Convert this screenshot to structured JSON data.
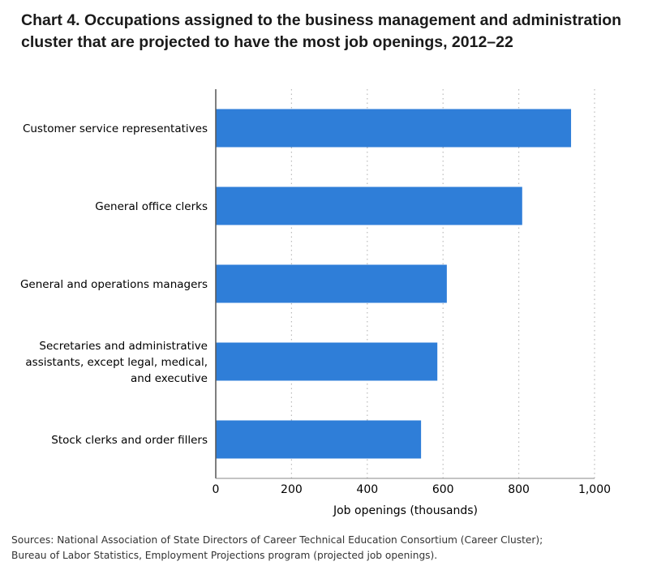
{
  "chart_data": {
    "type": "bar",
    "orientation": "horizontal",
    "title_lines": [
      "Chart 4. Occupations assigned to the business management and administration",
      "cluster that are projected to have the most job openings, 2012–22"
    ],
    "categories": [
      [
        "Customer service representatives"
      ],
      [
        "General office clerks"
      ],
      [
        "General and operations managers"
      ],
      [
        "Secretaries and administrative",
        "assistants, except legal, medical,",
        "and executive"
      ],
      [
        "Stock clerks and order fillers"
      ]
    ],
    "values": [
      938,
      809,
      610,
      585,
      542
    ],
    "xlabel": "Job openings (thousands)",
    "xlim": [
      0,
      1000
    ],
    "xticks": [
      0,
      200,
      400,
      600,
      800,
      1000
    ],
    "xtick_labels": [
      "0",
      "200",
      "400",
      "600",
      "800",
      "1,000"
    ],
    "grid": "vertical dotted",
    "bar_color": "#2f7ed8"
  },
  "sources_lines": [
    "Sources: National Association of State Directors of Career Technical Education Consortium (Career Cluster);",
    "Bureau of Labor Statistics, Employment Projections program (projected job openings)."
  ]
}
